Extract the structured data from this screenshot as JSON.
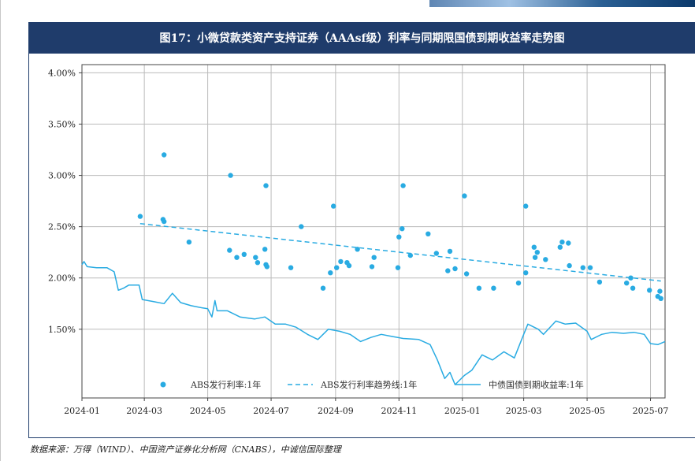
{
  "title": "图17：小微贷款类资产支持证券（AAAsf级）利率与同期限国债到期收益率走势图",
  "source_note": "数据来源：万得（WIND）、中国资产证券化分析网（CNABS），中诚信国际整理",
  "colors": {
    "title_bg": "#1f3c6b",
    "series": "#29abe2",
    "grid": "#bbbbbb"
  },
  "chart_data": {
    "type": "scatter",
    "title": "",
    "xlabel": "",
    "ylabel": "",
    "x_ticks": [
      "2024-01",
      "2024-03",
      "2024-05",
      "2024-07",
      "2024-09",
      "2024-11",
      "2025-01",
      "2025-03",
      "2025-05",
      "2025-07"
    ],
    "y_ticks": [
      "1.50%",
      "2.00%",
      "2.50%",
      "3.00%",
      "3.50%",
      "4.00%"
    ],
    "y_tick_values": [
      1.5,
      2.0,
      2.5,
      3.0,
      3.5,
      4.0
    ],
    "xlim": [
      "2024-01-01",
      "2025-07-15"
    ],
    "ylim": [
      0.83,
      4.08
    ],
    "grid": true,
    "legend_position": "bottom-inside",
    "series": [
      {
        "name": "ABS发行利率:1年",
        "kind": "scatter",
        "points": [
          [
            "2024-02-26",
            2.6
          ],
          [
            "2024-03-20",
            3.2
          ],
          [
            "2024-03-19",
            2.57
          ],
          [
            "2024-03-20",
            2.55
          ],
          [
            "2024-04-13",
            2.35
          ],
          [
            "2024-05-23",
            3.0
          ],
          [
            "2024-05-22",
            2.27
          ],
          [
            "2024-05-29",
            2.2
          ],
          [
            "2024-06-05",
            2.23
          ],
          [
            "2024-06-16",
            2.2
          ],
          [
            "2024-06-18",
            2.15
          ],
          [
            "2024-06-25",
            2.28
          ],
          [
            "2024-06-26",
            2.13
          ],
          [
            "2024-06-27",
            2.11
          ],
          [
            "2024-06-26",
            2.9
          ],
          [
            "2024-07-20",
            2.1
          ],
          [
            "2024-07-30",
            2.5
          ],
          [
            "2024-08-20",
            1.9
          ],
          [
            "2024-08-27",
            2.05
          ],
          [
            "2024-08-30",
            2.7
          ],
          [
            "2024-09-02",
            2.1
          ],
          [
            "2024-09-06",
            2.16
          ],
          [
            "2024-09-12",
            2.15
          ],
          [
            "2024-09-14",
            2.12
          ],
          [
            "2024-09-22",
            2.28
          ],
          [
            "2024-10-06",
            2.11
          ],
          [
            "2024-10-08",
            2.2
          ],
          [
            "2024-10-31",
            2.1
          ],
          [
            "2024-11-01",
            2.4
          ],
          [
            "2024-11-04",
            2.48
          ],
          [
            "2024-11-05",
            2.9
          ],
          [
            "2024-11-12",
            2.22
          ],
          [
            "2024-11-29",
            2.43
          ],
          [
            "2024-12-07",
            2.24
          ],
          [
            "2024-12-18",
            2.07
          ],
          [
            "2024-12-20",
            2.26
          ],
          [
            "2024-12-25",
            2.09
          ],
          [
            "2025-01-03",
            2.8
          ],
          [
            "2025-01-05",
            2.04
          ],
          [
            "2025-01-17",
            1.9
          ],
          [
            "2025-01-31",
            1.9
          ],
          [
            "2025-02-24",
            1.95
          ],
          [
            "2025-03-03",
            2.05
          ],
          [
            "2025-03-03",
            2.7
          ],
          [
            "2025-03-11",
            2.3
          ],
          [
            "2025-03-12",
            2.2
          ],
          [
            "2025-03-14",
            2.25
          ],
          [
            "2025-03-22",
            2.18
          ],
          [
            "2025-04-05",
            2.3
          ],
          [
            "2025-04-07",
            2.35
          ],
          [
            "2025-04-13",
            2.34
          ],
          [
            "2025-04-14",
            2.12
          ],
          [
            "2025-04-27",
            2.1
          ],
          [
            "2025-05-04",
            2.1
          ],
          [
            "2025-05-13",
            1.96
          ],
          [
            "2025-06-08",
            1.95
          ],
          [
            "2025-06-12",
            2.0
          ],
          [
            "2025-06-14",
            1.9
          ],
          [
            "2025-06-30",
            1.88
          ],
          [
            "2025-07-08",
            1.82
          ],
          [
            "2025-07-10",
            1.87
          ],
          [
            "2025-07-11",
            1.8
          ]
        ]
      },
      {
        "name": "ABS发行利率趋势线:1年",
        "kind": "trend",
        "points": [
          [
            "2024-02-26",
            2.53
          ],
          [
            "2025-07-11",
            1.97
          ]
        ]
      },
      {
        "name": "中债国债到期收益率:1年",
        "kind": "line",
        "points": [
          [
            "2024-01-01",
            2.13
          ],
          [
            "2024-01-03",
            2.16
          ],
          [
            "2024-01-06",
            2.11
          ],
          [
            "2024-01-15",
            2.1
          ],
          [
            "2024-01-25",
            2.1
          ],
          [
            "2024-02-01",
            2.06
          ],
          [
            "2024-02-05",
            1.88
          ],
          [
            "2024-02-10",
            1.9
          ],
          [
            "2024-02-15",
            1.93
          ],
          [
            "2024-02-25",
            1.93
          ],
          [
            "2024-02-28",
            1.79
          ],
          [
            "2024-03-10",
            1.77
          ],
          [
            "2024-03-20",
            1.75
          ],
          [
            "2024-03-28",
            1.85
          ],
          [
            "2024-04-05",
            1.76
          ],
          [
            "2024-04-15",
            1.73
          ],
          [
            "2024-04-25",
            1.71
          ],
          [
            "2024-05-01",
            1.7
          ],
          [
            "2024-05-05",
            1.62
          ],
          [
            "2024-05-08",
            1.78
          ],
          [
            "2024-05-10",
            1.68
          ],
          [
            "2024-05-20",
            1.68
          ],
          [
            "2024-06-01",
            1.62
          ],
          [
            "2024-06-15",
            1.6
          ],
          [
            "2024-06-25",
            1.62
          ],
          [
            "2024-07-05",
            1.55
          ],
          [
            "2024-07-15",
            1.55
          ],
          [
            "2024-07-25",
            1.52
          ],
          [
            "2024-08-05",
            1.45
          ],
          [
            "2024-08-15",
            1.4
          ],
          [
            "2024-08-25",
            1.5
          ],
          [
            "2024-09-05",
            1.48
          ],
          [
            "2024-09-15",
            1.45
          ],
          [
            "2024-09-25",
            1.38
          ],
          [
            "2024-10-05",
            1.42
          ],
          [
            "2024-10-15",
            1.45
          ],
          [
            "2024-10-25",
            1.43
          ],
          [
            "2024-11-05",
            1.41
          ],
          [
            "2024-11-20",
            1.4
          ],
          [
            "2024-12-01",
            1.35
          ],
          [
            "2024-12-08",
            1.2
          ],
          [
            "2024-12-15",
            1.02
          ],
          [
            "2024-12-20",
            1.08
          ],
          [
            "2024-12-25",
            0.96
          ],
          [
            "2025-01-03",
            1.05
          ],
          [
            "2025-01-10",
            1.1
          ],
          [
            "2025-01-20",
            1.25
          ],
          [
            "2025-01-30",
            1.2
          ],
          [
            "2025-02-10",
            1.28
          ],
          [
            "2025-02-20",
            1.22
          ],
          [
            "2025-03-01",
            1.45
          ],
          [
            "2025-03-05",
            1.55
          ],
          [
            "2025-03-15",
            1.5
          ],
          [
            "2025-03-20",
            1.45
          ],
          [
            "2025-04-01",
            1.58
          ],
          [
            "2025-04-10",
            1.55
          ],
          [
            "2025-04-20",
            1.56
          ],
          [
            "2025-05-01",
            1.48
          ],
          [
            "2025-05-05",
            1.4
          ],
          [
            "2025-05-15",
            1.45
          ],
          [
            "2025-05-25",
            1.47
          ],
          [
            "2025-06-05",
            1.46
          ],
          [
            "2025-06-15",
            1.47
          ],
          [
            "2025-06-25",
            1.45
          ],
          [
            "2025-07-01",
            1.36
          ],
          [
            "2025-07-08",
            1.35
          ],
          [
            "2025-07-15",
            1.38
          ]
        ]
      }
    ]
  }
}
